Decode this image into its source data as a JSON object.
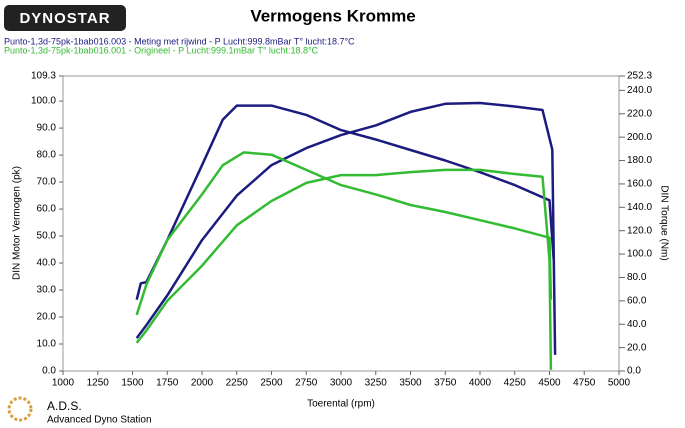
{
  "chart_data": {
    "type": "line",
    "logo": "DYNOSTAR",
    "title": "Vermogens Kromme",
    "footer_title": "A.D.S.",
    "footer_subtitle": "Advanced Dyno Station",
    "xlabel": "Toerental (rpm)",
    "ylabel": "DIN Motor Vermogen (pk)",
    "y2label": "DIN Torque (Nm)",
    "xlim": [
      1000,
      5000
    ],
    "xticks": [
      1000,
      1250,
      1500,
      1750,
      2000,
      2250,
      2500,
      2750,
      3000,
      3250,
      3500,
      3750,
      4000,
      4250,
      4500,
      4750,
      5000
    ],
    "ylim": [
      0,
      109.3
    ],
    "yticks": [
      {
        "value": 0,
        "label": "0.0"
      },
      {
        "value": 10,
        "label": "10.0"
      },
      {
        "value": 20,
        "label": "20.0"
      },
      {
        "value": 30,
        "label": "30.0"
      },
      {
        "value": 40,
        "label": "40.0"
      },
      {
        "value": 50,
        "label": "50.0"
      },
      {
        "value": 60,
        "label": "60.0"
      },
      {
        "value": 70,
        "label": "70.0"
      },
      {
        "value": 80,
        "label": "80.0"
      },
      {
        "value": 90,
        "label": "90.0"
      },
      {
        "value": 100,
        "label": "100.0"
      },
      109.3
    ],
    "y2lim": [
      0,
      252.3
    ],
    "y2ticks": [
      {
        "value": 0,
        "label": "0.0"
      },
      {
        "value": 20,
        "label": "20.0"
      },
      {
        "value": 40,
        "label": "40.0"
      },
      {
        "value": 60,
        "label": "60.0"
      },
      {
        "value": 80,
        "label": "80.0"
      },
      {
        "value": 100,
        "label": "100.0"
      },
      {
        "value": 120,
        "label": "120.0"
      },
      {
        "value": 140,
        "label": "140.0"
      },
      {
        "value": 160,
        "label": "160.0"
      },
      {
        "value": 180,
        "label": "180.0"
      },
      {
        "value": 200,
        "label": "200.0"
      },
      {
        "value": 220,
        "label": "220.0"
      },
      {
        "value": 240,
        "label": "240.0"
      },
      252.3
    ],
    "series": [
      {
        "name": "Punto-1,3d-75pk-1bab016.003 - Meting met rijwind  - P Lucht:999.8mBar T° lucht:18.7°C",
        "color": "#1c1c80",
        "x": [
          1530,
          1600,
          1750,
          2000,
          2250,
          2500,
          2750,
          3000,
          3250,
          3500,
          3750,
          4000,
          4250,
          4450,
          4520,
          4540
        ],
        "values": [
          12.2,
          17,
          28,
          48.5,
          65,
          76.3,
          82.6,
          87.4,
          91,
          96,
          99,
          99.3,
          98,
          96.7,
          82,
          6
        ]
      },
      {
        "color": "#1c1c80",
        "axis": "y2",
        "x": [
          1530,
          1560,
          1600,
          1750,
          2000,
          2150,
          2250,
          2500,
          2750,
          3000,
          3250,
          3500,
          3750,
          4000,
          4250,
          4500,
          4530
        ],
        "values": [
          61,
          75,
          76,
          112,
          176,
          215,
          227,
          227,
          219,
          206,
          198,
          189,
          180,
          170,
          159,
          146,
          95
        ]
      },
      {
        "name": "Punto-1,3d-75pk-1bab016.001 - Origineel  - P Lucht:999.1mBar T° lucht:18.8°C",
        "color": "#33bb33",
        "x": [
          1530,
          1600,
          1750,
          2000,
          2250,
          2500,
          2750,
          3000,
          3250,
          3500,
          3750,
          4000,
          4250,
          4450,
          4500,
          4510
        ],
        "values": [
          10.4,
          15,
          26,
          39,
          54,
          63,
          69.7,
          72.6,
          72.6,
          73.7,
          74.5,
          74.5,
          73,
          72,
          41,
          0.4
        ]
      },
      {
        "color": "#33bb33",
        "axis": "y2",
        "x": [
          1530,
          1600,
          1750,
          2000,
          2150,
          2300,
          2500,
          2750,
          3000,
          3250,
          3500,
          3750,
          4000,
          4250,
          4500,
          4510
        ],
        "values": [
          48,
          74,
          112,
          151,
          176,
          187,
          185,
          172,
          159,
          151,
          142,
          136,
          129,
          122,
          114,
          61
        ]
      }
    ]
  }
}
